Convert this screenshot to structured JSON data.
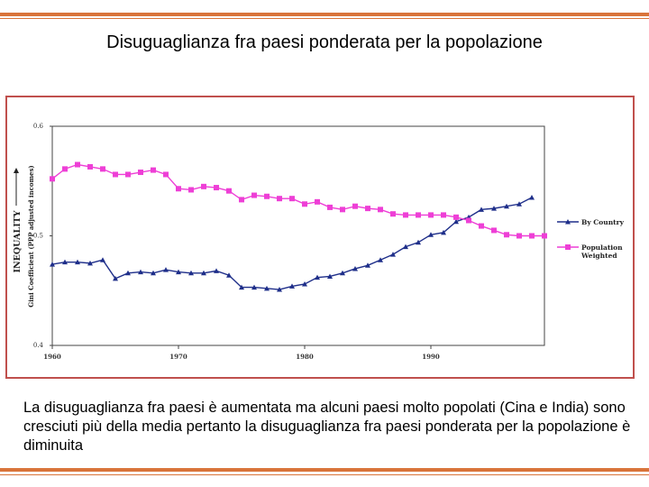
{
  "title": "Disuguaglianza fra paesi ponderata per la popolazione",
  "caption": "La disuguaglianza fra paesi è aumentata ma alcuni paesi molto popolati (Cina e India) sono cresciuti più della media pertanto la disuguaglianza fra paesi ponderata per la popolazione è diminuita",
  "colors": {
    "accent_rule": "#d9743a",
    "frame": "#c0504d",
    "by_country": "#1f2f8a",
    "population_weighted": "#ee3fd6"
  },
  "chart_data": {
    "type": "line",
    "ylabel_main": "INEQUALITY",
    "ylabel_sub": "Gini Coefficient (PPP adjusted incomes)",
    "xlim": [
      1960,
      1999
    ],
    "ylim": [
      0.4,
      0.6
    ],
    "xticks": [
      {
        "value": 1960,
        "label": "1960"
      },
      {
        "value": 1970,
        "label": "1970"
      },
      {
        "value": 1980,
        "label": "1980"
      },
      {
        "value": 1990,
        "label": "1990"
      }
    ],
    "yticks": [
      {
        "value": 0.4,
        "label": "0.4"
      },
      {
        "value": 0.5,
        "label": "0.5"
      },
      {
        "value": 0.6,
        "label": "0.6"
      }
    ],
    "legend_position": "right",
    "series": [
      {
        "name": "By Country",
        "marker": "triangle",
        "color": "#1f2f8a",
        "x": [
          1960,
          1961,
          1962,
          1963,
          1964,
          1965,
          1966,
          1967,
          1968,
          1969,
          1970,
          1971,
          1972,
          1973,
          1974,
          1975,
          1976,
          1977,
          1978,
          1979,
          1980,
          1981,
          1982,
          1983,
          1984,
          1985,
          1986,
          1987,
          1988,
          1989,
          1990,
          1991,
          1992,
          1993,
          1994,
          1995,
          1996,
          1997,
          1998,
          1999
        ],
        "y": [
          0.474,
          0.476,
          0.476,
          0.475,
          0.478,
          0.461,
          0.466,
          0.467,
          0.466,
          0.469,
          0.467,
          0.466,
          0.466,
          0.468,
          0.464,
          0.453,
          0.453,
          0.452,
          0.451,
          0.454,
          0.456,
          0.462,
          0.463,
          0.466,
          0.47,
          0.473,
          0.478,
          0.483,
          0.49,
          0.494,
          0.501,
          0.503,
          0.513,
          0.517,
          0.524,
          0.525,
          0.527,
          0.529,
          0.535,
          null
        ]
      },
      {
        "name": "Population Weighted",
        "marker": "square",
        "color": "#ee3fd6",
        "x": [
          1960,
          1961,
          1962,
          1963,
          1964,
          1965,
          1966,
          1967,
          1968,
          1969,
          1970,
          1971,
          1972,
          1973,
          1974,
          1975,
          1976,
          1977,
          1978,
          1979,
          1980,
          1981,
          1982,
          1983,
          1984,
          1985,
          1986,
          1987,
          1988,
          1989,
          1990,
          1991,
          1992,
          1993,
          1994,
          1995,
          1996,
          1997,
          1998,
          1999
        ],
        "y": [
          0.552,
          0.561,
          0.565,
          0.563,
          0.561,
          0.556,
          0.556,
          0.558,
          0.56,
          0.556,
          0.543,
          0.542,
          0.545,
          0.544,
          0.541,
          0.533,
          0.537,
          0.536,
          0.534,
          0.534,
          0.529,
          0.531,
          0.526,
          0.524,
          0.527,
          0.525,
          0.524,
          0.52,
          0.519,
          0.519,
          0.519,
          0.519,
          0.517,
          0.514,
          0.509,
          0.505,
          0.501,
          0.5,
          0.5,
          0.5
        ]
      }
    ],
    "legend": [
      {
        "lines": [
          "By Country"
        ],
        "series": 0
      },
      {
        "lines": [
          "Population",
          "Weighted"
        ],
        "series": 1
      }
    ]
  }
}
